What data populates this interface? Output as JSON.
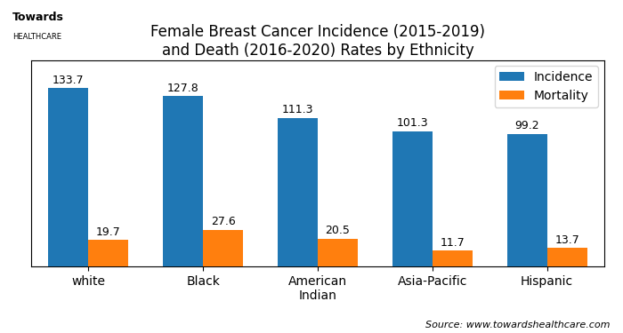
{
  "chart_data": {
    "type": "bar",
    "title": "Female Breast Cancer Incidence (2015-2019)\nand Death (2016-2020) Rates by Ethnicity",
    "categories": [
      "white",
      "Black",
      "American\nIndian",
      "Asia-Pacific",
      "Hispanic"
    ],
    "series": [
      {
        "name": "Incidence",
        "values": [
          133.7,
          127.8,
          111.3,
          101.3,
          99.2
        ]
      },
      {
        "name": "Mortality",
        "values": [
          19.7,
          27.6,
          20.5,
          11.7,
          13.7
        ]
      }
    ],
    "ylim": [
      0,
      155
    ],
    "data_labels": true,
    "tick_labels": "x",
    "legend": "upper right",
    "annotations": [
      "Source: www.towardshealthcare.com",
      "Towards",
      "HEALTHCARE"
    ]
  }
}
